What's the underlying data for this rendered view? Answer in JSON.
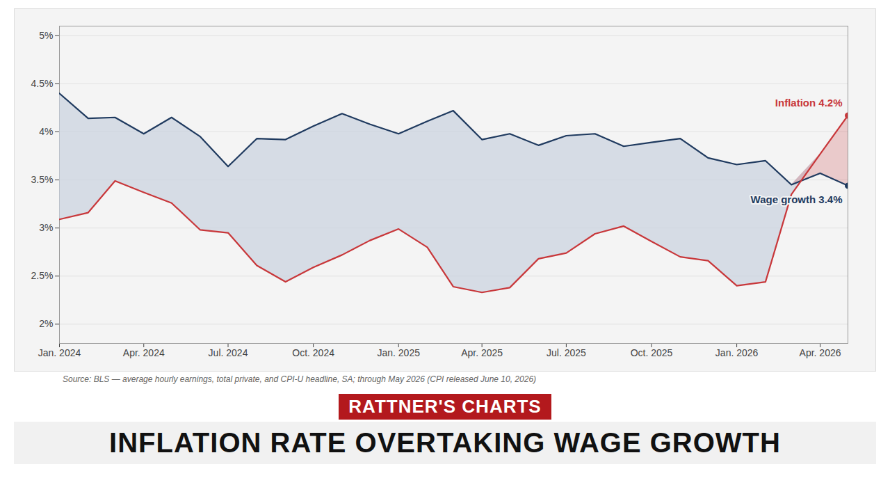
{
  "chart_data": {
    "type": "line",
    "title": "INFLATION RATE OVERTAKING WAGE GROWTH",
    "subtitle": "RATTNER'S CHARTS",
    "caption": "Source: BLS — average hourly earnings, total private, and CPI-U headline, SA; through May 2026 (CPI released June 10, 2026)",
    "x": [
      "2024-01",
      "2024-02",
      "2024-03",
      "2024-04",
      "2024-05",
      "2024-06",
      "2024-07",
      "2024-08",
      "2024-09",
      "2024-10",
      "2024-11",
      "2024-12",
      "2025-01",
      "2025-02",
      "2025-03",
      "2025-04",
      "2025-05",
      "2025-06",
      "2025-07",
      "2025-08",
      "2025-09",
      "2025-10",
      "2025-11",
      "2025-12",
      "2026-01",
      "2026-02",
      "2026-03",
      "2026-04",
      "2026-05"
    ],
    "series": [
      {
        "name": "Wage growth",
        "color": "#1f3a5f",
        "values": [
          4.4,
          4.14,
          4.15,
          3.98,
          4.15,
          3.95,
          3.64,
          3.93,
          3.92,
          4.06,
          4.19,
          4.08,
          3.98,
          4.11,
          4.22,
          3.92,
          3.98,
          3.86,
          3.96,
          3.98,
          3.85,
          3.89,
          3.93,
          3.73,
          3.66,
          3.7,
          3.45,
          3.57,
          3.44
        ]
      },
      {
        "name": "Inflation",
        "color": "#c8373a",
        "values": [
          3.09,
          3.16,
          3.49,
          3.37,
          3.26,
          2.98,
          2.95,
          2.61,
          2.44,
          2.59,
          2.72,
          2.87,
          2.99,
          2.8,
          2.39,
          2.33,
          2.38,
          2.68,
          2.74,
          2.94,
          3.02,
          2.86,
          2.7,
          2.66,
          2.4,
          2.44,
          3.35,
          3.77,
          4.17
        ]
      }
    ],
    "annotations": [
      {
        "text": "Inflation 4.2%",
        "x": "2026-05",
        "y": 4.17,
        "color": "#c8373a"
      },
      {
        "text": "Wage growth 3.4%",
        "x": "2026-05",
        "y": 3.44,
        "color": "#1f3a5f"
      }
    ],
    "xlim": [
      "2024-01",
      "2026-05"
    ],
    "xticks": [
      {
        "value": "2024-01",
        "label": "Jan. 2024"
      },
      {
        "value": "2024-04",
        "label": "Apr. 2024"
      },
      {
        "value": "2024-07",
        "label": "Jul. 2024"
      },
      {
        "value": "2024-10",
        "label": "Oct. 2024"
      },
      {
        "value": "2025-01",
        "label": "Jan. 2025"
      },
      {
        "value": "2025-04",
        "label": "Apr. 2025"
      },
      {
        "value": "2025-07",
        "label": "Jul. 2025"
      },
      {
        "value": "2025-10",
        "label": "Oct. 2025"
      },
      {
        "value": "2026-01",
        "label": "Jan. 2026"
      },
      {
        "value": "2026-04",
        "label": "Apr. 2026"
      }
    ],
    "ylim": [
      1.8,
      5.1
    ],
    "yticks": [
      {
        "value": 2,
        "label": "2%"
      },
      {
        "value": 2.5,
        "label": "2.5%"
      },
      {
        "value": 3,
        "label": "3%"
      },
      {
        "value": 3.5,
        "label": "3.5%"
      },
      {
        "value": 4,
        "label": "4%"
      },
      {
        "value": 4.5,
        "label": "4.5%"
      },
      {
        "value": 5,
        "label": "5%"
      }
    ],
    "grid": true
  }
}
